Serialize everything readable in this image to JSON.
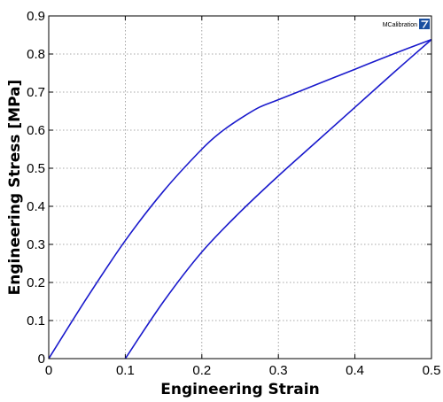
{
  "chart_data": {
    "type": "line",
    "title": "",
    "xlabel": "Engineering Strain",
    "ylabel": "Engineering Stress [MPa]",
    "xlim": [
      0,
      0.5
    ],
    "ylim": [
      0,
      0.9
    ],
    "x_ticks": [
      "0",
      "0.1",
      "0.2",
      "0.3",
      "0.4",
      "0.5"
    ],
    "y_ticks": [
      "0",
      "0.1",
      "0.2",
      "0.3",
      "0.4",
      "0.5",
      "0.6",
      "0.7",
      "0.8",
      "0.9"
    ],
    "grid": true,
    "legend": null,
    "series": [
      {
        "color": "#1a1acc",
        "x": [
          0,
          0.05,
          0.1,
          0.15,
          0.2,
          0.225,
          0.25,
          0.275,
          0.3,
          0.35,
          0.4,
          0.45,
          0.5
        ],
        "y": [
          0,
          0.16,
          0.31,
          0.44,
          0.55,
          0.595,
          0.63,
          0.66,
          0.68,
          0.72,
          0.76,
          0.8,
          0.838
        ]
      },
      {
        "color": "#1a1acc",
        "x": [
          0.5,
          0.45,
          0.4,
          0.35,
          0.3,
          0.25,
          0.2,
          0.15,
          0.1
        ],
        "y": [
          0.838,
          0.75,
          0.66,
          0.57,
          0.48,
          0.385,
          0.28,
          0.15,
          0
        ]
      }
    ]
  },
  "logo": {
    "text": "MCalibration",
    "accent": "#1a4fa0"
  }
}
